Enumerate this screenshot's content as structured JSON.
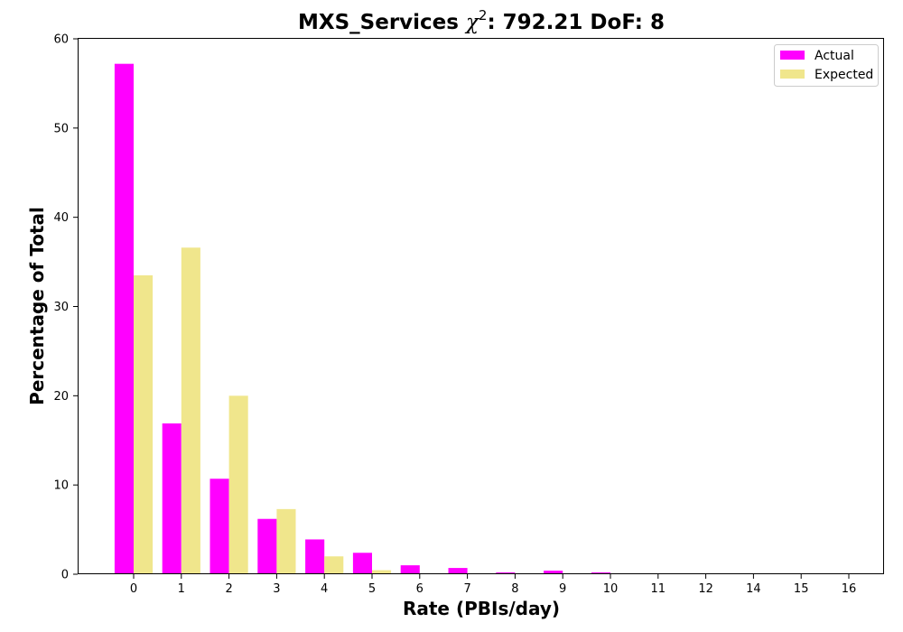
{
  "chart_data": {
    "type": "bar",
    "title": {
      "prefix": "MXS_Services ",
      "chi": "χ",
      "sup": "2",
      "suffix": ": 792.21 DoF: 8"
    },
    "xlabel": "Rate (PBIs/day)",
    "ylabel": "Percentage of Total",
    "categories": [
      "0",
      "1",
      "2",
      "3",
      "4",
      "5",
      "6",
      "7",
      "8",
      "9",
      "10",
      "11",
      "12",
      "14",
      "15",
      "16"
    ],
    "yticks": [
      "0",
      "10",
      "20",
      "30",
      "40",
      "50",
      "60"
    ],
    "ylim": [
      0,
      60
    ],
    "grid": false,
    "legend_position": "top-right",
    "series": [
      {
        "name": "Actual",
        "color": "#ff00ff",
        "values": [
          57.2,
          16.9,
          10.7,
          6.2,
          3.9,
          2.4,
          1.0,
          0.7,
          0.2,
          0.4,
          0.2,
          0.1,
          0.1,
          0.1,
          0.1,
          0.1
        ]
      },
      {
        "name": "Expected",
        "color": "#f0e68c",
        "values": [
          33.5,
          36.6,
          20.0,
          7.3,
          2.0,
          0.45,
          0.08,
          0.01,
          0,
          0,
          0,
          0,
          0,
          0,
          0,
          0
        ]
      }
    ]
  }
}
